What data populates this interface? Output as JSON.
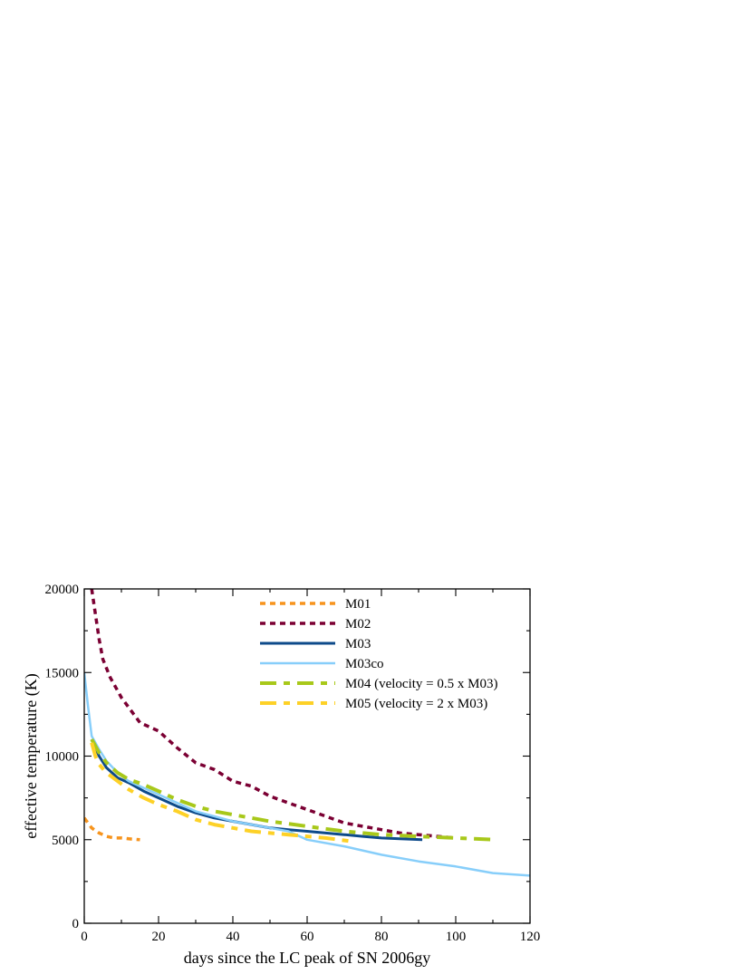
{
  "chart_data": {
    "type": "line",
    "title": "",
    "xlabel": "days since the LC peak of SN 2006gy",
    "ylabel": "effective temperature (K)",
    "xlim": [
      0,
      120
    ],
    "ylim": [
      0,
      20000
    ],
    "xticks": [
      0,
      20,
      40,
      60,
      80,
      100,
      120
    ],
    "xtick_labels": [
      "0",
      "20",
      "40",
      "60",
      "80",
      "100",
      "120"
    ],
    "yticks": [
      0,
      5000,
      10000,
      15000,
      20000
    ],
    "ytick_labels": [
      "0",
      "5000",
      "10000",
      "15000",
      "20000"
    ],
    "grid": false,
    "legend_position": "top-center",
    "series": [
      {
        "name": "M01",
        "color": "#f7941d",
        "style": "dotted",
        "x": [
          0,
          1,
          2,
          4,
          6,
          8,
          10,
          12,
          15
        ],
        "y": [
          6300,
          6000,
          5700,
          5400,
          5200,
          5100,
          5100,
          5050,
          5000
        ]
      },
      {
        "name": "M02",
        "color": "#7b0033",
        "style": "dotted",
        "x": [
          2,
          3,
          4,
          5,
          7,
          10,
          15,
          20,
          25,
          30,
          35,
          40,
          45,
          50,
          55,
          60,
          65,
          70,
          75,
          80,
          85,
          90,
          95,
          100
        ],
        "y": [
          20000,
          18500,
          17000,
          15800,
          14700,
          13500,
          12000,
          11500,
          10500,
          9600,
          9200,
          8500,
          8200,
          7600,
          7200,
          6800,
          6400,
          6000,
          5800,
          5600,
          5400,
          5300,
          5200,
          5100
        ]
      },
      {
        "name": "M03",
        "color": "#0d4a8a",
        "style": "solid",
        "x": [
          2,
          4,
          6,
          9,
          12,
          16,
          20,
          25,
          30,
          35,
          40,
          45,
          50,
          55,
          60,
          65,
          70,
          75,
          80,
          85,
          91
        ],
        "y": [
          11000,
          10000,
          9300,
          8700,
          8400,
          7900,
          7500,
          7000,
          6600,
          6300,
          6100,
          5900,
          5700,
          5600,
          5500,
          5400,
          5300,
          5200,
          5100,
          5050,
          5000
        ]
      },
      {
        "name": "M03co",
        "color": "#87cefa",
        "style": "solid",
        "x": [
          0,
          1,
          2,
          4,
          6,
          9,
          12,
          16,
          20,
          25,
          30,
          35,
          40,
          45,
          50,
          55,
          60,
          70,
          80,
          90,
          100,
          110,
          120
        ],
        "y": [
          15000,
          13000,
          11200,
          10400,
          9700,
          9000,
          8500,
          8100,
          7700,
          7200,
          6700,
          6400,
          6100,
          5900,
          5700,
          5500,
          5000,
          4600,
          4100,
          3700,
          3400,
          3000,
          2850
        ]
      },
      {
        "name": "M04 (velocity = 0.5 x M03)",
        "color": "#a8c81a",
        "style": "dashdot",
        "x": [
          2,
          4,
          6,
          9,
          12,
          16,
          20,
          25,
          30,
          35,
          40,
          45,
          50,
          55,
          60,
          65,
          70,
          75,
          80,
          85,
          90,
          95,
          100,
          105,
          111
        ],
        "y": [
          11000,
          10200,
          9600,
          9000,
          8600,
          8300,
          7900,
          7400,
          7000,
          6700,
          6500,
          6300,
          6100,
          5950,
          5800,
          5650,
          5500,
          5400,
          5300,
          5250,
          5200,
          5150,
          5100,
          5050,
          5000
        ]
      },
      {
        "name": "M05 (velocity = 2 x M03)",
        "color": "#fdd127",
        "style": "dashdot",
        "x": [
          2,
          3,
          4,
          6,
          9,
          12,
          16,
          20,
          25,
          30,
          35,
          40,
          45,
          50,
          55,
          60,
          65,
          72
        ],
        "y": [
          10800,
          10000,
          9500,
          9000,
          8500,
          8000,
          7500,
          7100,
          6700,
          6200,
          5900,
          5700,
          5500,
          5400,
          5300,
          5200,
          5100,
          4900
        ]
      }
    ]
  }
}
